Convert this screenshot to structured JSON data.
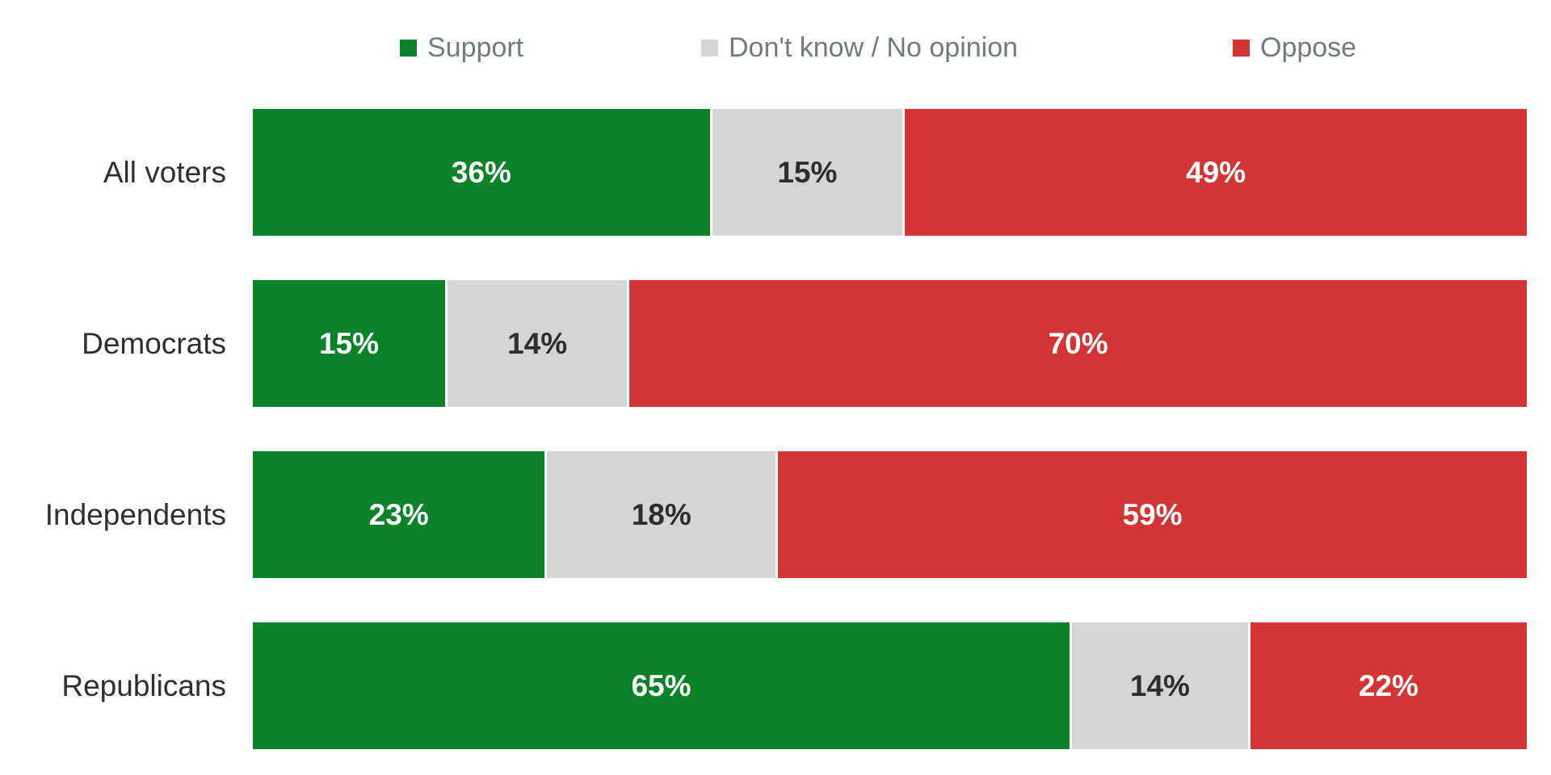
{
  "legend": {
    "items": [
      {
        "label": "Support",
        "color": "#0a8328"
      },
      {
        "label": "Don't know / No opinion",
        "color": "#d5d5d5"
      },
      {
        "label": "Oppose",
        "color": "#d33434"
      }
    ]
  },
  "chart_data": {
    "type": "bar",
    "subtype": "horizontal-stacked-100",
    "title": "",
    "xlabel": "",
    "ylabel": "",
    "grid": false,
    "legend_position": "top",
    "value_format": "percent",
    "categories": [
      "All voters",
      "Democrats",
      "Independents",
      "Republicans"
    ],
    "series": [
      {
        "name": "Support",
        "color": "#0a8328",
        "values": [
          36,
          15,
          23,
          65
        ],
        "labels": [
          "36%",
          "15%",
          "23%",
          "65%"
        ]
      },
      {
        "name": "Don't know / No opinion",
        "color": "#d5d5d5",
        "values": [
          15,
          14,
          18,
          14
        ],
        "labels": [
          "15%",
          "14%",
          "18%",
          "14%"
        ]
      },
      {
        "name": "Oppose",
        "color": "#d33434",
        "values": [
          49,
          70,
          59,
          22
        ],
        "labels": [
          "49%",
          "70%",
          "59%",
          "22%"
        ]
      }
    ]
  },
  "colors": {
    "background": "#ffffff",
    "category_label": "#2f2f2f",
    "legend_text": "#6f7b7c",
    "value_on_color": "#ffffff",
    "value_on_gray": "#2e2e2e",
    "segment_divider": "#ffffff"
  }
}
